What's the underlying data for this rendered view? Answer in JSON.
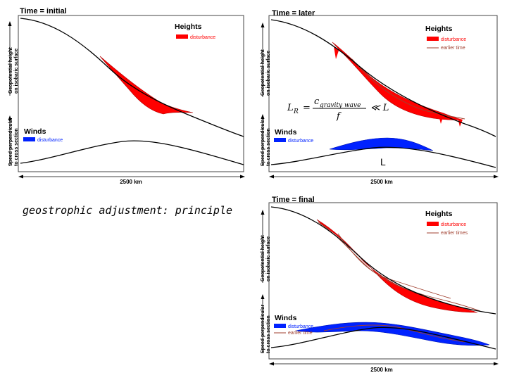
{
  "caption": "geostrophic adjustment: principle",
  "panels": {
    "initial": {
      "title": "Time = initial",
      "heights_label": "Heights",
      "heights_legend": [
        "disturbance"
      ],
      "winds_label": "Winds",
      "winds_legend": [
        "disturbance"
      ],
      "y_label_heights": [
        "Geopotential height",
        "on isobaric surface"
      ],
      "y_label_winds": [
        "Speed perpendicular",
        "to cross section"
      ],
      "scale_label": "2500 km"
    },
    "later": {
      "title": "Time = later",
      "heights_label": "Heights",
      "heights_legend": [
        "disturbance",
        "earlier time"
      ],
      "winds_label": "Winds",
      "winds_legend": [
        "disturbance"
      ],
      "y_label_heights": [
        "Geopotential height",
        "on isobaric surface"
      ],
      "y_label_winds": [
        "Speed perpendicular",
        "to cross section"
      ],
      "scale_label": "2500 km",
      "low_marker": "L",
      "equation": {
        "lhs": "L",
        "lhs_sub": "R",
        "equals": "=",
        "numerator": "c",
        "numerator_sub": "gravity wave",
        "denominator": "f",
        "relation": "≪ L"
      }
    },
    "final": {
      "title": "Time = final",
      "heights_label": "Heights",
      "heights_legend": [
        "disturbance",
        "earlier times"
      ],
      "winds_label": "Winds",
      "winds_legend": [
        "disturbance",
        "earlier time"
      ],
      "y_label_heights": [
        "Geopotential height",
        "on isobaric surface"
      ],
      "y_label_winds": [
        "Speed perpendicular",
        "to cross section"
      ],
      "scale_label": "2500 km"
    }
  },
  "colors": {
    "disturbance_heights": "#ff0000",
    "disturbance_winds": "#0022ff",
    "earlier_time": "#a04030",
    "curve": "#000000"
  }
}
